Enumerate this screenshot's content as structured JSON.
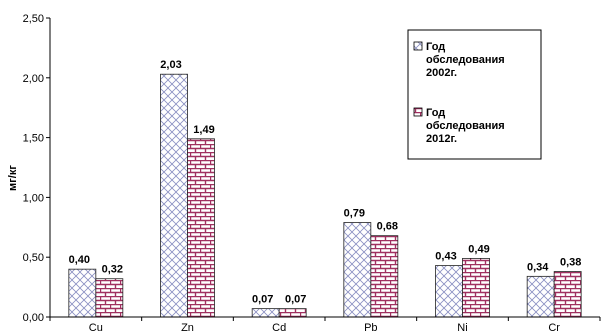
{
  "chart_data": {
    "type": "bar",
    "categories": [
      "Cu",
      "Zn",
      "Cd",
      "Pb",
      "Ni",
      "Cr"
    ],
    "series": [
      {
        "name": "Год обследования 2002г.",
        "values": [
          0.4,
          2.03,
          0.07,
          0.79,
          0.43,
          0.34
        ],
        "labels": [
          "0,40",
          "2,03",
          "0,07",
          "0,79",
          "0,43",
          "0,34"
        ],
        "pattern": "diagonal-crosshatch",
        "color": "#8a8fc2"
      },
      {
        "name": "Год обследования 2012г.",
        "values": [
          0.32,
          1.49,
          0.07,
          0.68,
          0.49,
          0.38
        ],
        "labels": [
          "0,32",
          "1,49",
          "0,07",
          "0,68",
          "0,49",
          "0,38"
        ],
        "pattern": "brick",
        "color": "#a03060"
      }
    ],
    "ylabel": "мг/кг",
    "xlabel": "",
    "title": "",
    "ylim": [
      0,
      2.5
    ],
    "yticks": [
      "0,00",
      "0,50",
      "1,00",
      "1,50",
      "2,00",
      "2,50"
    ],
    "grid": false,
    "legend": {
      "placement": "top-right",
      "entries": [
        [
          "Год",
          "обследования",
          "2002г."
        ],
        [
          "Год",
          "обследования",
          "2012г."
        ]
      ]
    }
  }
}
